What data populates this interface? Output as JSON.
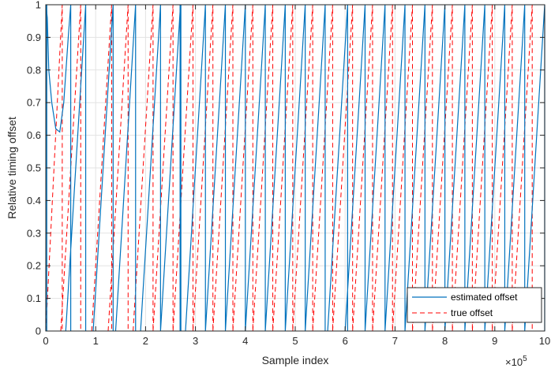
{
  "chart_data": {
    "type": "line",
    "xlabel": "Sample index",
    "ylabel": "Relative timing offset",
    "x_exponent_label": "×10",
    "x_exponent": "5",
    "xlim": [
      0,
      1000000
    ],
    "ylim": [
      0,
      1
    ],
    "x_ticks": [
      0,
      100000,
      200000,
      300000,
      400000,
      500000,
      600000,
      700000,
      800000,
      900000,
      1000000
    ],
    "x_tick_labels": [
      "0",
      "1",
      "2",
      "3",
      "4",
      "5",
      "6",
      "7",
      "8",
      "9",
      "10"
    ],
    "y_ticks": [
      0,
      0.1,
      0.2,
      0.3,
      0.4,
      0.5,
      0.6,
      0.7,
      0.8,
      0.9,
      1
    ],
    "y_tick_labels": [
      "0",
      "0.1",
      "0.2",
      "0.3",
      "0.4",
      "0.5",
      "0.6",
      "0.7",
      "0.8",
      "0.9",
      "1"
    ],
    "grid": true,
    "legend_position": "bottom-right",
    "series": [
      {
        "name": "estimated offset",
        "color": "#0072BD",
        "style": "solid",
        "initial_transient": [
          [
            0,
            0
          ],
          [
            500,
            1
          ],
          [
            3000,
            0.96
          ],
          [
            6000,
            0.8
          ],
          [
            12000,
            0.7
          ],
          [
            20000,
            0.62
          ],
          [
            28000,
            0.61
          ],
          [
            36000,
            0.7
          ],
          [
            45000,
            0.9
          ],
          [
            50000,
            1
          ]
        ],
        "wrap_points": [
          27000,
          50000,
          80000,
          135000,
          180000,
          230000,
          270000,
          320000,
          360000,
          400000,
          440000,
          480000,
          520000,
          560000,
          605000,
          640000,
          680000,
          720000,
          760000,
          800000,
          840000,
          880000,
          920000,
          960000,
          1000000
        ],
        "sawtooth_period": 40000
      },
      {
        "name": "true offset",
        "color": "#FF0000",
        "style": "dashed",
        "wrap_points": [
          33000,
          70000,
          132000,
          165000,
          215000,
          255000,
          295000,
          335000,
          375000,
          415000,
          455000,
          495000,
          535000,
          575000,
          615000,
          655000,
          695000,
          735000,
          775000,
          815000,
          855000,
          895000,
          935000,
          975000
        ],
        "sawtooth_period": 40000
      }
    ]
  }
}
